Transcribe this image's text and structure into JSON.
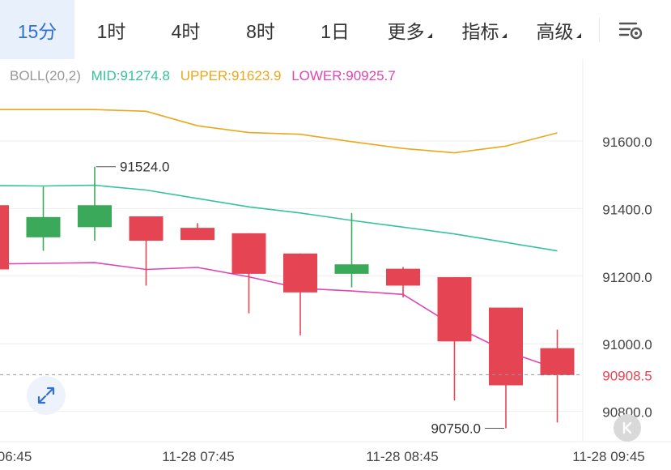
{
  "tabs": [
    {
      "label": "15分",
      "active": true
    },
    {
      "label": "1时",
      "active": false
    },
    {
      "label": "4时",
      "active": false
    },
    {
      "label": "8时",
      "active": false
    },
    {
      "label": "1日",
      "active": false
    },
    {
      "label": "更多",
      "active": false,
      "dropdown": true
    },
    {
      "label": "指标",
      "active": false,
      "dropdown": true
    },
    {
      "label": "高级",
      "active": false,
      "dropdown": true
    }
  ],
  "settings_icon": "chart-settings-icon",
  "legend": {
    "name": "BOLL(20,2)",
    "mid": "MID:91274.8",
    "upper": "UPPER:91623.9",
    "lower": "LOWER:90925.7"
  },
  "colors": {
    "up": "#3aaa5a",
    "down": "#e54553",
    "mid": "#35c29c",
    "upper": "#eaa81c",
    "lower": "#e045b5",
    "current_price": "#e54553",
    "legend_name": "#999999",
    "active_tab": "#2f6fd6"
  },
  "chart_data": {
    "type": "candlestick",
    "y_ticks": [
      "91600.0",
      "91400.0",
      "91200.0",
      "91000.0",
      "90800.0"
    ],
    "y_tick_values": [
      91600,
      91400,
      91200,
      91000,
      90800
    ],
    "x_ticks": [
      "06:45",
      "11-28 07:45",
      "11-28 08:45",
      "11-28 09:45"
    ],
    "current_price": 90908.5,
    "current_price_label": "90908.5",
    "high_label": "91524.0",
    "low_label": "90750.0",
    "candles": [
      {
        "open": 91410,
        "close": 91220,
        "high": 91420,
        "low": 91200
      },
      {
        "open": 91315,
        "close": 91375,
        "high": 91465,
        "low": 91275
      },
      {
        "open": 91345,
        "close": 91410,
        "high": 91524,
        "low": 91305
      },
      {
        "open": 91377,
        "close": 91305,
        "high": 91377,
        "low": 91172
      },
      {
        "open": 91343,
        "close": 91307,
        "high": 91357,
        "low": 91307
      },
      {
        "open": 91327,
        "close": 91207,
        "high": 91327,
        "low": 91090
      },
      {
        "open": 91267,
        "close": 91152,
        "high": 91267,
        "low": 91025
      },
      {
        "open": 91207,
        "close": 91235,
        "high": 91387,
        "low": 91167
      },
      {
        "open": 91222,
        "close": 91172,
        "high": 91227,
        "low": 91137
      },
      {
        "open": 91197,
        "close": 91007,
        "high": 91197,
        "low": 90832
      },
      {
        "open": 91107,
        "close": 90877,
        "high": 91107,
        "low": 90750
      },
      {
        "open": 90987,
        "close": 90907,
        "high": 91042,
        "low": 90767
      }
    ],
    "boll_upper": [
      91693,
      91693,
      91693,
      91688,
      91645,
      91625,
      91620,
      91598,
      91578,
      91565,
      91585,
      91623.9
    ],
    "boll_mid": [
      91468,
      91467,
      91469,
      91455,
      91430,
      91405,
      91387,
      91365,
      91345,
      91325,
      91300,
      91274.8
    ],
    "boll_lower": [
      91236,
      91238,
      91240,
      91220,
      91226,
      91198,
      91164,
      91156,
      91146,
      91052,
      90978,
      90925.7
    ]
  }
}
